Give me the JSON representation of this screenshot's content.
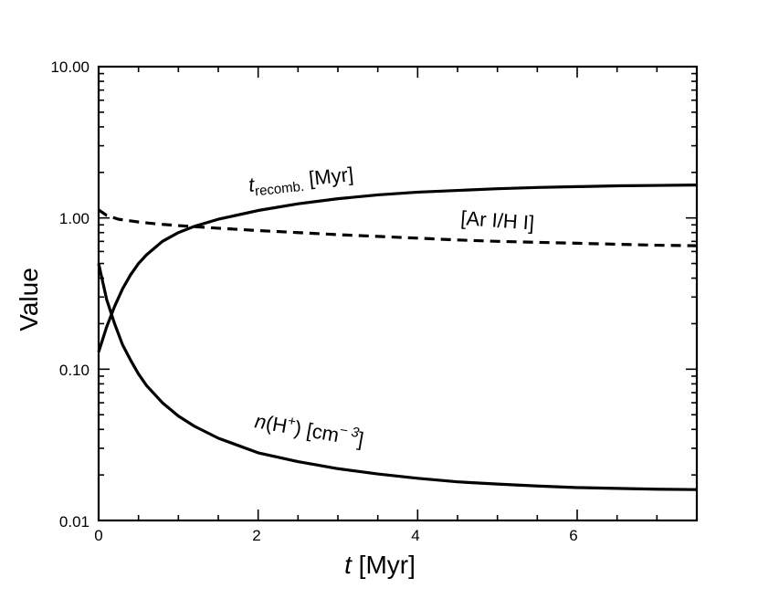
{
  "chart_data": {
    "type": "line",
    "title": "",
    "xlabel_italic": "t",
    "xlabel_rest": " [Myr]",
    "ylabel": "Value",
    "xlim": [
      0,
      7.5
    ],
    "ylim": [
      0.01,
      10
    ],
    "yscale": "log",
    "x_ticks": [
      "0",
      "2",
      "4",
      "6"
    ],
    "y_ticks": [
      "10.00",
      "1.00",
      "0.10",
      "0.01"
    ],
    "grid": false,
    "colors": {
      "line": "#000000",
      "frame": "#000000"
    },
    "series": [
      {
        "name": "t_recomb. [Myr]",
        "style": "solid",
        "x": [
          0,
          0.1,
          0.2,
          0.3,
          0.4,
          0.5,
          0.6,
          0.8,
          1.0,
          1.2,
          1.5,
          2.0,
          2.5,
          3.0,
          3.5,
          4.0,
          4.5,
          5.0,
          5.5,
          6.0,
          6.5,
          7.0,
          7.5
        ],
        "y": [
          0.13,
          0.19,
          0.26,
          0.34,
          0.42,
          0.5,
          0.57,
          0.7,
          0.8,
          0.88,
          0.98,
          1.12,
          1.24,
          1.34,
          1.42,
          1.48,
          1.52,
          1.56,
          1.59,
          1.61,
          1.63,
          1.64,
          1.65
        ]
      },
      {
        "name": "[Ar I/H I]",
        "style": "dashed",
        "x": [
          0,
          0.1,
          0.25,
          0.5,
          0.75,
          1.0,
          1.5,
          2.0,
          2.5,
          3.0,
          3.5,
          4.0,
          4.5,
          5.0,
          5.5,
          6.0,
          6.5,
          7.0,
          7.5
        ],
        "y": [
          1.13,
          1.04,
          0.98,
          0.94,
          0.91,
          0.89,
          0.855,
          0.825,
          0.8,
          0.775,
          0.755,
          0.735,
          0.715,
          0.7,
          0.69,
          0.68,
          0.67,
          0.66,
          0.655
        ]
      },
      {
        "name": "n(H+) [cm^-3]",
        "style": "solid",
        "x": [
          0,
          0.1,
          0.2,
          0.3,
          0.4,
          0.5,
          0.6,
          0.8,
          1.0,
          1.2,
          1.5,
          2.0,
          2.5,
          3.0,
          3.5,
          4.0,
          4.5,
          5.0,
          5.5,
          6.0,
          6.5,
          7.0,
          7.5
        ],
        "y": [
          0.5,
          0.29,
          0.2,
          0.145,
          0.115,
          0.093,
          0.078,
          0.06,
          0.049,
          0.042,
          0.035,
          0.028,
          0.0245,
          0.022,
          0.0203,
          0.019,
          0.018,
          0.0174,
          0.0169,
          0.0165,
          0.0163,
          0.0161,
          0.016
        ]
      }
    ],
    "annotations": [
      {
        "id": "trecomb",
        "main": "t",
        "sub": "recomb.",
        "rest": " [Myr]"
      },
      {
        "id": "ar",
        "text": "[Ar I/H I]"
      },
      {
        "id": "nh",
        "n": "n",
        "open": "(H",
        "sup": "+",
        "close": ") [cm",
        "exp": "− 3",
        "end": "]"
      }
    ]
  }
}
